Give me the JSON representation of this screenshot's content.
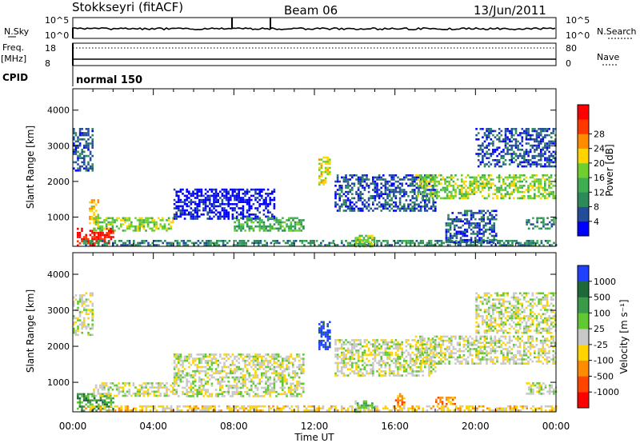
{
  "header": {
    "station": "Stokkseyri (fitACF)",
    "beam": "Beam 06",
    "date": "13/Jun/2011"
  },
  "status_panels": {
    "nsky_label": "N.Sky",
    "nsky_ticks": [
      "10^5",
      "10^0"
    ],
    "nsearch_label": "N.Search",
    "nsearch_ticks": [
      "10^5",
      "10^0"
    ],
    "freq_label": "Freq.",
    "freq_unit": "[MHz]",
    "freq_ticks": [
      "18",
      "8"
    ],
    "nave_label": "Nave",
    "nave_ticks": [
      "80",
      "0"
    ],
    "cpid_label": "CPID",
    "cpid_value": "normal 150"
  },
  "colors": {
    "power": [
      "#0000ff",
      "#234d9a",
      "#2f8a5a",
      "#3fae53",
      "#6fcf2f",
      "#ffd400",
      "#ff8c00",
      "#ff3800",
      "#ff0000"
    ],
    "velocity": [
      "#2040ff",
      "#1d6a38",
      "#3a9a4a",
      "#62c832",
      "#c8c8c8",
      "#ffd400",
      "#ff8c00",
      "#ff4500",
      "#ff0000"
    ]
  },
  "chart_data": [
    {
      "type": "heatmap",
      "panel": "power",
      "ylabel": "Slant Range [km]",
      "xlabel": "Time UT",
      "x_ticks": [
        "00:00",
        "04:00",
        "08:00",
        "12:00",
        "16:00",
        "20:00",
        "00:00"
      ],
      "y_ticks": [
        1000,
        2000,
        3000,
        4000
      ],
      "ylim": [
        180,
        4600
      ],
      "xlim_hours": [
        0,
        24
      ],
      "colorbar_label": "Power [dB]",
      "colorbar_ticks": [
        4,
        8,
        12,
        16,
        20,
        24,
        28
      ],
      "regions": [
        {
          "t0": 0.0,
          "t1": 1.0,
          "r0": 2300,
          "r1": 3500,
          "level": 1
        },
        {
          "t0": 0.2,
          "t1": 2.0,
          "r0": 200,
          "r1": 700,
          "level": 8
        },
        {
          "t0": 0.8,
          "t1": 1.3,
          "r0": 800,
          "r1": 1500,
          "level": 5
        },
        {
          "t0": 1.0,
          "t1": 5.0,
          "r0": 600,
          "r1": 1000,
          "level": 4
        },
        {
          "t0": 0.5,
          "t1": 24.0,
          "r0": 200,
          "r1": 360,
          "level": 2
        },
        {
          "t0": 5.0,
          "t1": 10.0,
          "r0": 950,
          "r1": 1800,
          "level": 0
        },
        {
          "t0": 8.0,
          "t1": 11.5,
          "r0": 600,
          "r1": 1000,
          "level": 3
        },
        {
          "t0": 12.2,
          "t1": 12.8,
          "r0": 1900,
          "r1": 2700,
          "level": 5
        },
        {
          "t0": 13.0,
          "t1": 18.0,
          "r0": 1200,
          "r1": 2200,
          "level": 1
        },
        {
          "t0": 14.0,
          "t1": 15.0,
          "r0": 200,
          "r1": 500,
          "level": 4
        },
        {
          "t0": 17.0,
          "t1": 24.0,
          "r0": 1500,
          "r1": 2200,
          "level": 4
        },
        {
          "t0": 20.0,
          "t1": 24.0,
          "r0": 2400,
          "r1": 3500,
          "level": 1
        },
        {
          "t0": 18.5,
          "t1": 21.0,
          "r0": 300,
          "r1": 1200,
          "level": 1
        },
        {
          "t0": 22.5,
          "t1": 24.0,
          "r0": 700,
          "r1": 1000,
          "level": 2
        }
      ]
    },
    {
      "type": "heatmap",
      "panel": "velocity",
      "ylabel": "Slant Range [km]",
      "xlabel": "Time UT",
      "x_ticks": [
        "00:00",
        "04:00",
        "08:00",
        "12:00",
        "16:00",
        "20:00",
        "00:00"
      ],
      "y_ticks": [
        1000,
        2000,
        3000,
        4000
      ],
      "ylim": [
        180,
        4600
      ],
      "xlim_hours": [
        0,
        24
      ],
      "colorbar_label": "Velocity [m s⁻¹]",
      "colorbar_ticks": [
        1000,
        500,
        100,
        25,
        -25,
        -100,
        -500,
        -1000
      ],
      "regions": [
        {
          "t0": 0.0,
          "t1": 1.0,
          "r0": 2300,
          "r1": 3500,
          "level": 4
        },
        {
          "t0": 0.2,
          "t1": 2.0,
          "r0": 200,
          "r1": 700,
          "level": 2
        },
        {
          "t0": 1.0,
          "t1": 5.0,
          "r0": 600,
          "r1": 1000,
          "level": 4
        },
        {
          "t0": 0.5,
          "t1": 24.0,
          "r0": 200,
          "r1": 360,
          "level": 5
        },
        {
          "t0": 5.0,
          "t1": 11.5,
          "r0": 600,
          "r1": 1800,
          "level": 4
        },
        {
          "t0": 12.2,
          "t1": 12.8,
          "r0": 1900,
          "r1": 2700,
          "level": 0
        },
        {
          "t0": 13.0,
          "t1": 18.0,
          "r0": 1200,
          "r1": 2200,
          "level": 4
        },
        {
          "t0": 14.0,
          "t1": 15.0,
          "r0": 200,
          "r1": 500,
          "level": 3
        },
        {
          "t0": 17.0,
          "t1": 24.0,
          "r0": 1500,
          "r1": 2300,
          "level": 4
        },
        {
          "t0": 20.0,
          "t1": 24.0,
          "r0": 2400,
          "r1": 3500,
          "level": 4
        },
        {
          "t0": 18.0,
          "t1": 19.0,
          "r0": 400,
          "r1": 600,
          "level": 6
        },
        {
          "t0": 16.0,
          "t1": 16.5,
          "r0": 400,
          "r1": 700,
          "level": 6
        },
        {
          "t0": 22.5,
          "t1": 24.0,
          "r0": 700,
          "r1": 1000,
          "level": 4
        }
      ]
    }
  ]
}
